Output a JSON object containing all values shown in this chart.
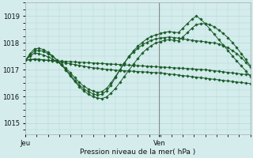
{
  "bg_color": "#d4ecec",
  "grid_color": "#b0d4d4",
  "line_color": "#1a5c28",
  "marker_color": "#1a5c28",
  "ylabel_ticks": [
    1015,
    1016,
    1017,
    1018,
    1019
  ],
  "xlabel": "Pression niveau de la mer( hPa )",
  "xtick_labels": [
    "Jeu",
    "Ven"
  ],
  "vline_pos": 0.595,
  "ylim": [
    1014.6,
    1019.5
  ],
  "xlim": [
    0.0,
    1.0
  ],
  "series": [
    {
      "x": [
        0.0,
        0.02,
        0.04,
        0.06,
        0.08,
        0.1,
        0.12,
        0.14,
        0.16,
        0.18,
        0.2,
        0.22,
        0.24,
        0.26,
        0.28,
        0.3,
        0.32,
        0.34,
        0.36,
        0.38,
        0.4,
        0.42,
        0.44,
        0.46,
        0.48,
        0.5,
        0.52,
        0.54,
        0.56,
        0.58,
        0.6,
        0.62,
        0.64,
        0.66,
        0.68,
        0.7,
        0.72,
        0.74,
        0.76,
        0.78,
        0.8,
        0.82,
        0.84,
        0.86,
        0.88,
        0.9,
        0.92,
        0.94,
        0.96,
        0.98,
        1.0
      ],
      "y": [
        1017.35,
        1017.37,
        1017.38,
        1017.37,
        1017.36,
        1017.35,
        1017.34,
        1017.33,
        1017.32,
        1017.31,
        1017.3,
        1017.29,
        1017.28,
        1017.27,
        1017.26,
        1017.25,
        1017.24,
        1017.23,
        1017.22,
        1017.21,
        1017.2,
        1017.19,
        1017.18,
        1017.17,
        1017.16,
        1017.15,
        1017.14,
        1017.13,
        1017.12,
        1017.11,
        1017.1,
        1017.09,
        1017.08,
        1017.07,
        1017.06,
        1017.05,
        1017.04,
        1017.03,
        1017.02,
        1017.01,
        1017.0,
        1016.98,
        1016.96,
        1016.94,
        1016.92,
        1016.9,
        1016.88,
        1016.86,
        1016.84,
        1016.82,
        1016.8
      ]
    },
    {
      "x": [
        0.0,
        0.02,
        0.04,
        0.06,
        0.08,
        0.1,
        0.12,
        0.14,
        0.16,
        0.18,
        0.2,
        0.22,
        0.24,
        0.26,
        0.28,
        0.3,
        0.32,
        0.34,
        0.36,
        0.38,
        0.4,
        0.42,
        0.44,
        0.46,
        0.48,
        0.5,
        0.52,
        0.54,
        0.56,
        0.58,
        0.6,
        0.62,
        0.64,
        0.66,
        0.68,
        0.7,
        0.72,
        0.74,
        0.76,
        0.78,
        0.8,
        0.82,
        0.84,
        0.86,
        0.88,
        0.9,
        0.92,
        0.94,
        0.96,
        0.98,
        1.0
      ],
      "y": [
        1017.35,
        1017.38,
        1017.4,
        1017.39,
        1017.37,
        1017.35,
        1017.33,
        1017.3,
        1017.28,
        1017.25,
        1017.22,
        1017.19,
        1017.16,
        1017.13,
        1017.1,
        1017.07,
        1017.05,
        1017.03,
        1017.01,
        1017.0,
        1016.98,
        1016.97,
        1016.96,
        1016.95,
        1016.94,
        1016.93,
        1016.92,
        1016.91,
        1016.9,
        1016.89,
        1016.88,
        1016.86,
        1016.84,
        1016.82,
        1016.8,
        1016.78,
        1016.76,
        1016.74,
        1016.72,
        1016.7,
        1016.68,
        1016.66,
        1016.64,
        1016.62,
        1016.6,
        1016.58,
        1016.56,
        1016.54,
        1016.52,
        1016.5,
        1016.48
      ]
    },
    {
      "x": [
        0.0,
        0.02,
        0.04,
        0.06,
        0.08,
        0.1,
        0.12,
        0.14,
        0.16,
        0.18,
        0.2,
        0.22,
        0.24,
        0.26,
        0.28,
        0.3,
        0.32,
        0.34,
        0.36,
        0.38,
        0.4,
        0.42,
        0.44,
        0.46,
        0.48,
        0.5,
        0.52,
        0.54,
        0.56,
        0.58,
        0.6,
        0.62,
        0.64,
        0.66,
        0.68,
        0.7,
        0.72,
        0.74,
        0.76,
        0.78,
        0.8,
        0.82,
        0.84,
        0.86,
        0.88,
        0.9,
        0.92,
        0.94,
        0.96,
        0.98,
        1.0
      ],
      "y": [
        1017.35,
        1017.5,
        1017.62,
        1017.6,
        1017.55,
        1017.48,
        1017.4,
        1017.3,
        1017.18,
        1017.05,
        1016.88,
        1016.7,
        1016.52,
        1016.38,
        1016.28,
        1016.2,
        1016.15,
        1016.18,
        1016.3,
        1016.5,
        1016.75,
        1017.0,
        1017.25,
        1017.48,
        1017.65,
        1017.8,
        1017.92,
        1018.02,
        1018.1,
        1018.15,
        1018.18,
        1018.2,
        1018.22,
        1018.2,
        1018.18,
        1018.15,
        1018.12,
        1018.1,
        1018.08,
        1018.06,
        1018.04,
        1018.02,
        1018.0,
        1017.96,
        1017.9,
        1017.82,
        1017.72,
        1017.6,
        1017.45,
        1017.28,
        1017.1
      ]
    },
    {
      "x": [
        0.0,
        0.02,
        0.04,
        0.06,
        0.08,
        0.1,
        0.12,
        0.14,
        0.16,
        0.18,
        0.2,
        0.22,
        0.24,
        0.26,
        0.28,
        0.3,
        0.32,
        0.34,
        0.36,
        0.38,
        0.4,
        0.42,
        0.44,
        0.46,
        0.48,
        0.5,
        0.52,
        0.54,
        0.56,
        0.58,
        0.6,
        0.62,
        0.64,
        0.66,
        0.68,
        0.7,
        0.72,
        0.74,
        0.76,
        0.78,
        0.8,
        0.82,
        0.84,
        0.86,
        0.88,
        0.9,
        0.92,
        0.94,
        0.96,
        0.98,
        1.0
      ],
      "y": [
        1017.35,
        1017.55,
        1017.7,
        1017.72,
        1017.68,
        1017.6,
        1017.5,
        1017.35,
        1017.18,
        1017.0,
        1016.8,
        1016.6,
        1016.42,
        1016.28,
        1016.18,
        1016.1,
        1016.05,
        1016.08,
        1016.2,
        1016.42,
        1016.7,
        1016.98,
        1017.25,
        1017.5,
        1017.7,
        1017.88,
        1018.02,
        1018.15,
        1018.25,
        1018.3,
        1018.35,
        1018.4,
        1018.42,
        1018.4,
        1018.38,
        1018.55,
        1018.72,
        1018.88,
        1019.0,
        1018.88,
        1018.72,
        1018.52,
        1018.32,
        1018.12,
        1017.92,
        1017.72,
        1017.52,
        1017.32,
        1017.14,
        1016.96,
        1016.75
      ]
    },
    {
      "x": [
        0.0,
        0.02,
        0.04,
        0.06,
        0.08,
        0.1,
        0.12,
        0.14,
        0.16,
        0.18,
        0.2,
        0.22,
        0.24,
        0.26,
        0.28,
        0.3,
        0.32,
        0.34,
        0.36,
        0.38,
        0.4,
        0.42,
        0.44,
        0.46,
        0.48,
        0.5,
        0.52,
        0.54,
        0.56,
        0.58,
        0.6,
        0.62,
        0.64,
        0.66,
        0.68,
        0.7,
        0.72,
        0.74,
        0.76,
        0.78,
        0.8,
        0.82,
        0.84,
        0.86,
        0.88,
        0.9,
        0.92,
        0.94,
        0.96,
        0.98,
        1.0
      ],
      "y": [
        1017.35,
        1017.6,
        1017.78,
        1017.8,
        1017.75,
        1017.65,
        1017.52,
        1017.36,
        1017.18,
        1016.98,
        1016.76,
        1016.55,
        1016.36,
        1016.2,
        1016.08,
        1016.0,
        1015.94,
        1015.92,
        1015.98,
        1016.12,
        1016.3,
        1016.52,
        1016.75,
        1016.98,
        1017.2,
        1017.42,
        1017.62,
        1017.78,
        1017.9,
        1018.0,
        1018.05,
        1018.1,
        1018.12,
        1018.1,
        1018.08,
        1018.22,
        1018.38,
        1018.55,
        1018.68,
        1018.72,
        1018.72,
        1018.68,
        1018.6,
        1018.48,
        1018.35,
        1018.2,
        1018.02,
        1017.82,
        1017.6,
        1017.38,
        1017.15
      ]
    }
  ],
  "figsize": [
    3.2,
    2.0
  ],
  "dpi": 100
}
